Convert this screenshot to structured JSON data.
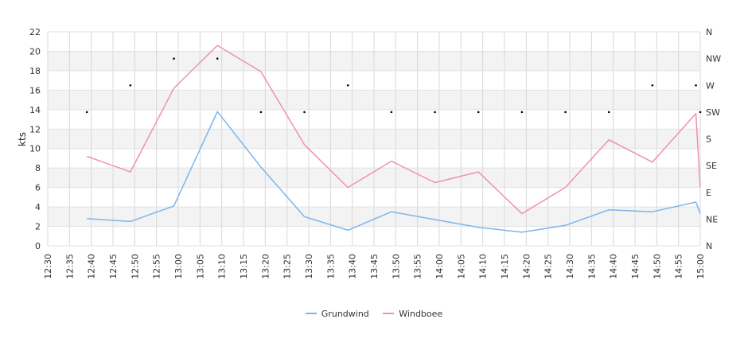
{
  "chart_data": {
    "type": "line",
    "ylabel": "kts",
    "ylim": [
      0,
      22
    ],
    "y_ticks": [
      "0",
      "2",
      "4",
      "6",
      "8",
      "10",
      "12",
      "14",
      "16",
      "18",
      "20",
      "22"
    ],
    "x_ticks": [
      "12:30",
      "12:35",
      "12:40",
      "12:45",
      "12:50",
      "12:55",
      "13:00",
      "13:05",
      "13:10",
      "13:15",
      "13:20",
      "13:25",
      "13:30",
      "13:35",
      "13:40",
      "13:45",
      "13:50",
      "13:55",
      "14:00",
      "14:05",
      "14:10",
      "14:15",
      "14:20",
      "14:25",
      "14:30",
      "14:35",
      "14:40",
      "14:45",
      "14:50",
      "14:55",
      "15:00"
    ],
    "x_range": [
      "12:30",
      "15:00"
    ],
    "direction_axis": {
      "labels": [
        "N",
        "NE",
        "E",
        "SE",
        "S",
        "SW",
        "W",
        "NW",
        "N"
      ]
    },
    "grid": true,
    "legend_position": "bottom-center",
    "series": [
      {
        "name": "Grundwind",
        "color": "#7cb5ec",
        "points": [
          [
            "12:39",
            2.8
          ],
          [
            "12:49",
            2.5
          ],
          [
            "12:59",
            4.1
          ],
          [
            "13:09",
            13.8
          ],
          [
            "13:19",
            8.1
          ],
          [
            "13:29",
            3.0
          ],
          [
            "13:39",
            1.6
          ],
          [
            "13:49",
            3.5
          ],
          [
            "13:59",
            2.7
          ],
          [
            "14:09",
            1.9
          ],
          [
            "14:19",
            1.4
          ],
          [
            "14:29",
            2.1
          ],
          [
            "14:39",
            3.7
          ],
          [
            "14:49",
            3.5
          ],
          [
            "14:59",
            4.5
          ],
          [
            "15:00",
            3.3
          ]
        ]
      },
      {
        "name": "Windboee",
        "color": "#f08fb8",
        "points": [
          [
            "12:39",
            9.2
          ],
          [
            "12:49",
            7.6
          ],
          [
            "12:59",
            16.2
          ],
          [
            "13:09",
            20.6
          ],
          [
            "13:19",
            17.9
          ],
          [
            "13:29",
            10.4
          ],
          [
            "13:39",
            6.0
          ],
          [
            "13:49",
            8.7
          ],
          [
            "13:59",
            6.5
          ],
          [
            "14:09",
            7.6
          ],
          [
            "14:19",
            3.3
          ],
          [
            "14:29",
            6.0
          ],
          [
            "14:39",
            10.9
          ],
          [
            "14:49",
            8.6
          ],
          [
            "14:59",
            13.6
          ],
          [
            "15:00",
            6.0
          ]
        ]
      }
    ],
    "wind_direction": {
      "points": [
        [
          "12:39",
          "SW"
        ],
        [
          "12:49",
          "W"
        ],
        [
          "12:59",
          "NW"
        ],
        [
          "13:09",
          "NW"
        ],
        [
          "13:19",
          "SW"
        ],
        [
          "13:29",
          "SW"
        ],
        [
          "13:39",
          "W"
        ],
        [
          "13:49",
          "SW"
        ],
        [
          "13:59",
          "SW"
        ],
        [
          "14:09",
          "SW"
        ],
        [
          "14:19",
          "SW"
        ],
        [
          "14:29",
          "SW"
        ],
        [
          "14:39",
          "SW"
        ],
        [
          "14:49",
          "W"
        ],
        [
          "14:59",
          "W"
        ],
        [
          "15:00",
          "SW"
        ]
      ]
    }
  }
}
